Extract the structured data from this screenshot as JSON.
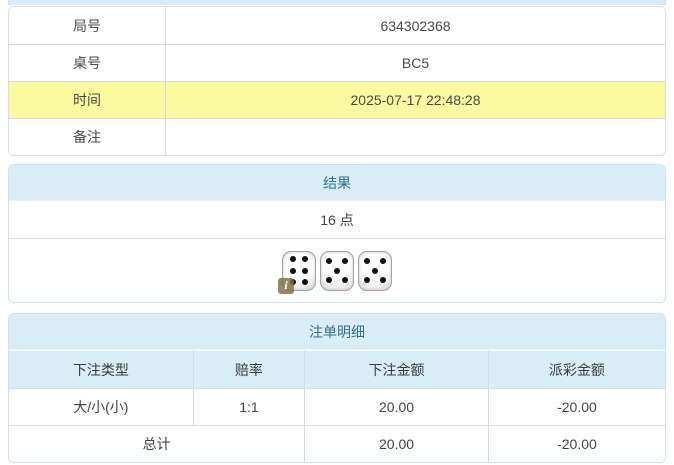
{
  "colors": {
    "section_header_bg": "#d9edf7",
    "section_header_text": "#31708f",
    "highlight_row_bg": "#fafaa0",
    "negative_red": "#e53935",
    "panel_border": "#cfe3ec"
  },
  "info_table": {
    "rows": [
      {
        "label": "局号",
        "value": "634302368",
        "highlight": false
      },
      {
        "label": "桌号",
        "value": "BC5",
        "highlight": false
      },
      {
        "label": "时间",
        "value": "2025-07-17 22:48:28",
        "highlight": true
      },
      {
        "label": "备注",
        "value": "",
        "highlight": false
      }
    ]
  },
  "result_section": {
    "title": "结果",
    "points_text": "16 点",
    "dice": [
      6,
      5,
      5
    ],
    "info_badge": "i"
  },
  "bet_section": {
    "title": "注单明细",
    "columns": [
      "下注类型",
      "赔率",
      "下注金额",
      "派彩金额"
    ],
    "rows": [
      {
        "type": "大/小(小)",
        "odds": "1:1",
        "bet_amount": "20.00",
        "payout": "-20.00"
      }
    ],
    "total": {
      "label": "总计",
      "bet_amount": "20.00",
      "payout": "-20.00"
    }
  }
}
